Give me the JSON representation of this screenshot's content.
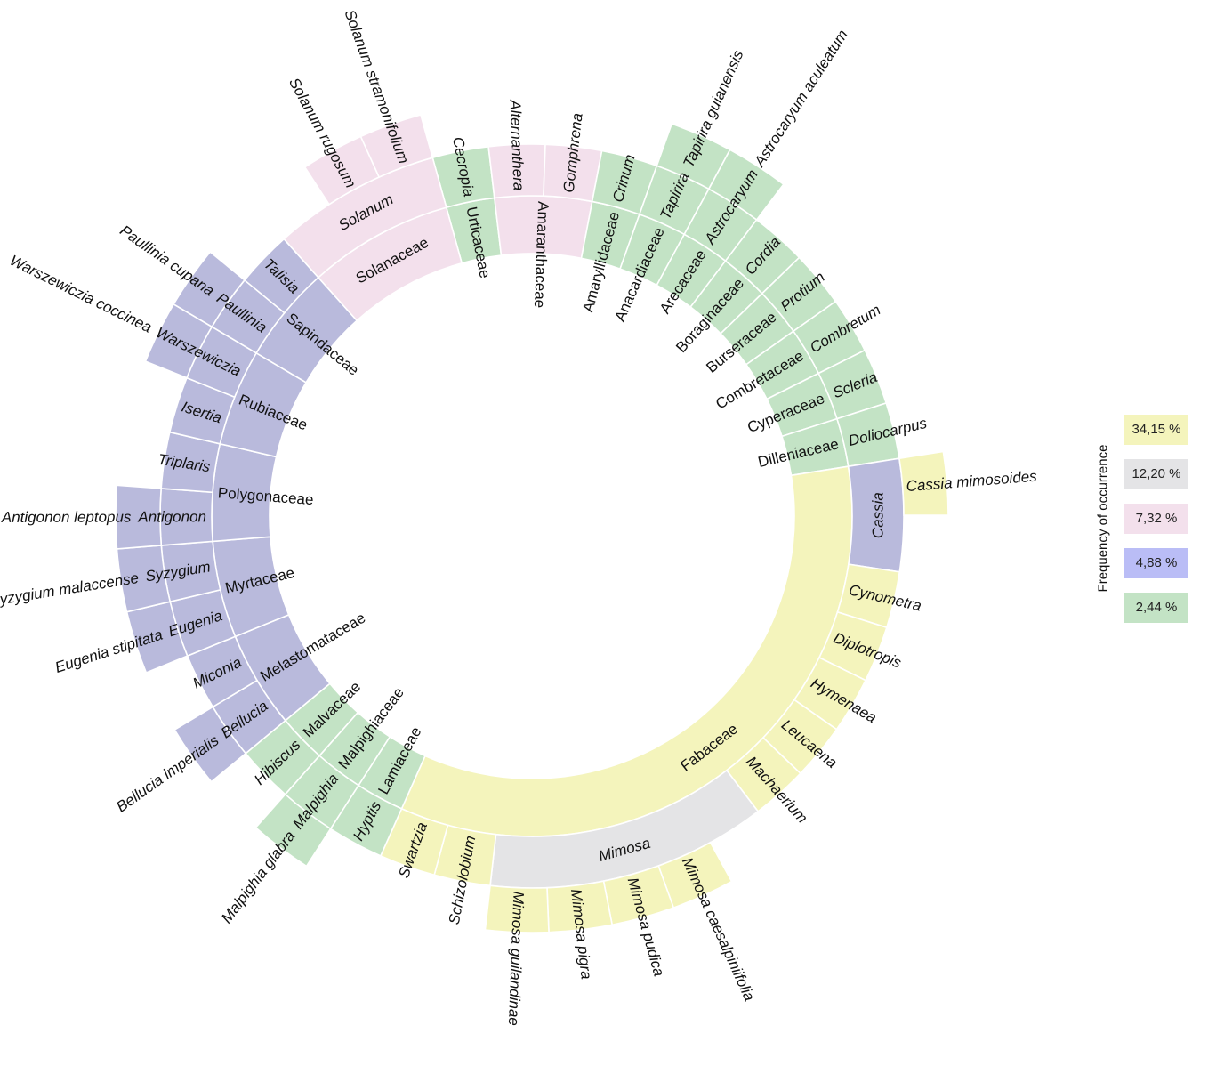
{
  "chart_data": {
    "type": "sunburst",
    "title": "",
    "total_leaves": 41,
    "levels": [
      "family",
      "genus",
      "species"
    ],
    "colors": {
      "yellow": "#f4f4bc",
      "gray": "#e4e4e6",
      "pink": "#f3e0ec",
      "lavender": "#b9bad c",
      "green": "#c3e3c5"
    },
    "palette": {
      "yellow": "#f4f4bc",
      "gray": "#e4e4e6",
      "pink": "#f3e0ec",
      "lavender": "#b9badc",
      "green": "#c3e3c5"
    },
    "legend": {
      "title": "Frequency of occurrence",
      "placement": "right",
      "items": [
        {
          "label": "34,15 %",
          "value": 34.15,
          "color": "#f4f4bc"
        },
        {
          "label": "12,20 %",
          "value": 12.2,
          "color": "#e4e4e6"
        },
        {
          "label": "7,32 %",
          "value": 7.32,
          "color": "#f3e0ec"
        },
        {
          "label": "4,88 %",
          "value": 4.88,
          "color": "#babdf6"
        },
        {
          "label": "2,44 %",
          "value": 2.44,
          "color": "#c3e3c5"
        }
      ]
    },
    "families": [
      {
        "name": "Urticaceae",
        "c": "green",
        "genera": [
          {
            "name": "Cecropia",
            "n": 1,
            "c": "green",
            "species": []
          }
        ]
      },
      {
        "name": "Amaranthaceae",
        "c": "pink",
        "genera": [
          {
            "name": "Alternanthera",
            "n": 1,
            "c": "pink",
            "species": []
          },
          {
            "name": "Gomphrena",
            "n": 1,
            "c": "pink",
            "species": []
          }
        ]
      },
      {
        "name": "Amaryllidaceae",
        "c": "green",
        "genera": [
          {
            "name": "Crinum",
            "n": 1,
            "c": "green",
            "species": []
          }
        ]
      },
      {
        "name": "Anacardiaceae",
        "c": "green",
        "genera": [
          {
            "name": "Tapirira",
            "n": 1,
            "c": "green",
            "species": [
              {
                "name": "Tapirira guianensis",
                "c": "green"
              }
            ]
          }
        ]
      },
      {
        "name": "Arecaceae",
        "c": "green",
        "genera": [
          {
            "name": "Astrocaryum",
            "n": 1,
            "c": "green",
            "species": [
              {
                "name": "Astrocaryum aculeatum",
                "c": "green"
              }
            ]
          }
        ]
      },
      {
        "name": "Boraginaceae",
        "c": "green",
        "genera": [
          {
            "name": "Cordia",
            "n": 1,
            "c": "green",
            "species": []
          }
        ]
      },
      {
        "name": "Burseraceae",
        "c": "green",
        "genera": [
          {
            "name": "Protium",
            "n": 1,
            "c": "green",
            "species": []
          }
        ]
      },
      {
        "name": "Combretaceae",
        "c": "green",
        "genera": [
          {
            "name": "Combretum",
            "n": 1,
            "c": "green",
            "species": []
          }
        ]
      },
      {
        "name": "Cyperaceae",
        "c": "green",
        "genera": [
          {
            "name": "Scleria",
            "n": 1,
            "c": "green",
            "species": []
          }
        ]
      },
      {
        "name": "Dilleniaceae",
        "c": "green",
        "genera": [
          {
            "name": "Doliocarpus",
            "n": 1,
            "c": "green",
            "species": []
          }
        ]
      },
      {
        "name": "Fabaceae",
        "c": "yellow",
        "tangential": true,
        "genera": [
          {
            "name": "Cassia",
            "n": 2,
            "c": "lavender",
            "tangential": true,
            "species_align": "start",
            "species": [
              {
                "name": "Cassia mimosoides",
                "c": "yellow"
              }
            ]
          },
          {
            "name": "Cynometra",
            "n": 1,
            "c": "yellow",
            "species": []
          },
          {
            "name": "Diplotropis",
            "n": 1,
            "c": "yellow",
            "species": []
          },
          {
            "name": "Hymenaea",
            "n": 1,
            "c": "yellow",
            "species": []
          },
          {
            "name": "Leucaena",
            "n": 1,
            "c": "yellow",
            "species": []
          },
          {
            "name": "Machaerium",
            "n": 1,
            "c": "yellow",
            "species": []
          },
          {
            "name": "Mimosa",
            "n": 5,
            "c": "gray",
            "tangential": true,
            "species_align": "end",
            "species": [
              {
                "name": "Mimosa caesalpiniifolia",
                "c": "yellow"
              },
              {
                "name": "Mimosa pudica",
                "c": "yellow"
              },
              {
                "name": "Mimosa pigra",
                "c": "yellow"
              },
              {
                "name": "Mimosa guilandinae",
                "c": "yellow"
              }
            ]
          },
          {
            "name": "Schizolobium",
            "n": 1,
            "c": "yellow",
            "species": []
          },
          {
            "name": "Swartzia",
            "n": 1,
            "c": "yellow",
            "species": []
          }
        ]
      },
      {
        "name": "Lamiaceae",
        "c": "green",
        "genera": [
          {
            "name": "Hyptis",
            "n": 1,
            "c": "green",
            "species": []
          }
        ]
      },
      {
        "name": "Malpighiaceae",
        "c": "green",
        "genera": [
          {
            "name": "Malpighia",
            "n": 1,
            "c": "green",
            "species": [
              {
                "name": "Malpighia glabra",
                "c": "green"
              }
            ]
          }
        ]
      },
      {
        "name": "Malvaceae",
        "c": "green",
        "genera": [
          {
            "name": "Hibiscus",
            "n": 1,
            "c": "green",
            "species": []
          }
        ]
      },
      {
        "name": "Melastomataceae",
        "c": "lavender",
        "genera": [
          {
            "name": "Bellucia",
            "n": 1,
            "c": "lavender",
            "species": [
              {
                "name": "Bellucia imperialis",
                "c": "lavender"
              }
            ]
          },
          {
            "name": "Miconia",
            "n": 1,
            "c": "lavender",
            "species": []
          }
        ]
      },
      {
        "name": "Myrtaceae",
        "c": "lavender",
        "genera": [
          {
            "name": "Eugenia",
            "n": 1,
            "c": "lavender",
            "species": [
              {
                "name": "Eugenia stipitata",
                "c": "lavender"
              }
            ]
          },
          {
            "name": "Syzygium",
            "n": 1,
            "c": "lavender",
            "species": [
              {
                "name": "Syzygium malaccense",
                "c": "lavender"
              }
            ]
          }
        ]
      },
      {
        "name": "Polygonaceae",
        "c": "lavender",
        "genera": [
          {
            "name": "Antigonon",
            "n": 1,
            "c": "lavender",
            "species": [
              {
                "name": "Antigonon leptopus",
                "c": "lavender"
              }
            ]
          },
          {
            "name": "Triplaris",
            "n": 1,
            "c": "lavender",
            "species": []
          }
        ]
      },
      {
        "name": "Rubiaceae",
        "c": "lavender",
        "genera": [
          {
            "name": "Isertia",
            "n": 1,
            "c": "lavender",
            "species": []
          },
          {
            "name": "Warszewiczia",
            "n": 1,
            "c": "lavender",
            "species": [
              {
                "name": "Warszewiczia coccinea",
                "c": "lavender"
              }
            ]
          }
        ]
      },
      {
        "name": "Sapindaceae",
        "c": "lavender",
        "genera": [
          {
            "name": "Paullinia",
            "n": 1,
            "c": "lavender",
            "species": [
              {
                "name": "Paullinia cupana",
                "c": "lavender"
              }
            ]
          },
          {
            "name": "Talisia",
            "n": 1,
            "c": "lavender",
            "species": []
          }
        ]
      },
      {
        "name": "Solanaceae",
        "c": "pink",
        "tangential": true,
        "genera": [
          {
            "name": "Solanum",
            "n": 3,
            "c": "pink",
            "tangential": true,
            "species_align": "end",
            "species": [
              {
                "name": "Solanum rugosum",
                "c": "pink"
              },
              {
                "name": "Solanum stramonifolium",
                "c": "pink"
              }
            ]
          }
        ]
      }
    ]
  }
}
